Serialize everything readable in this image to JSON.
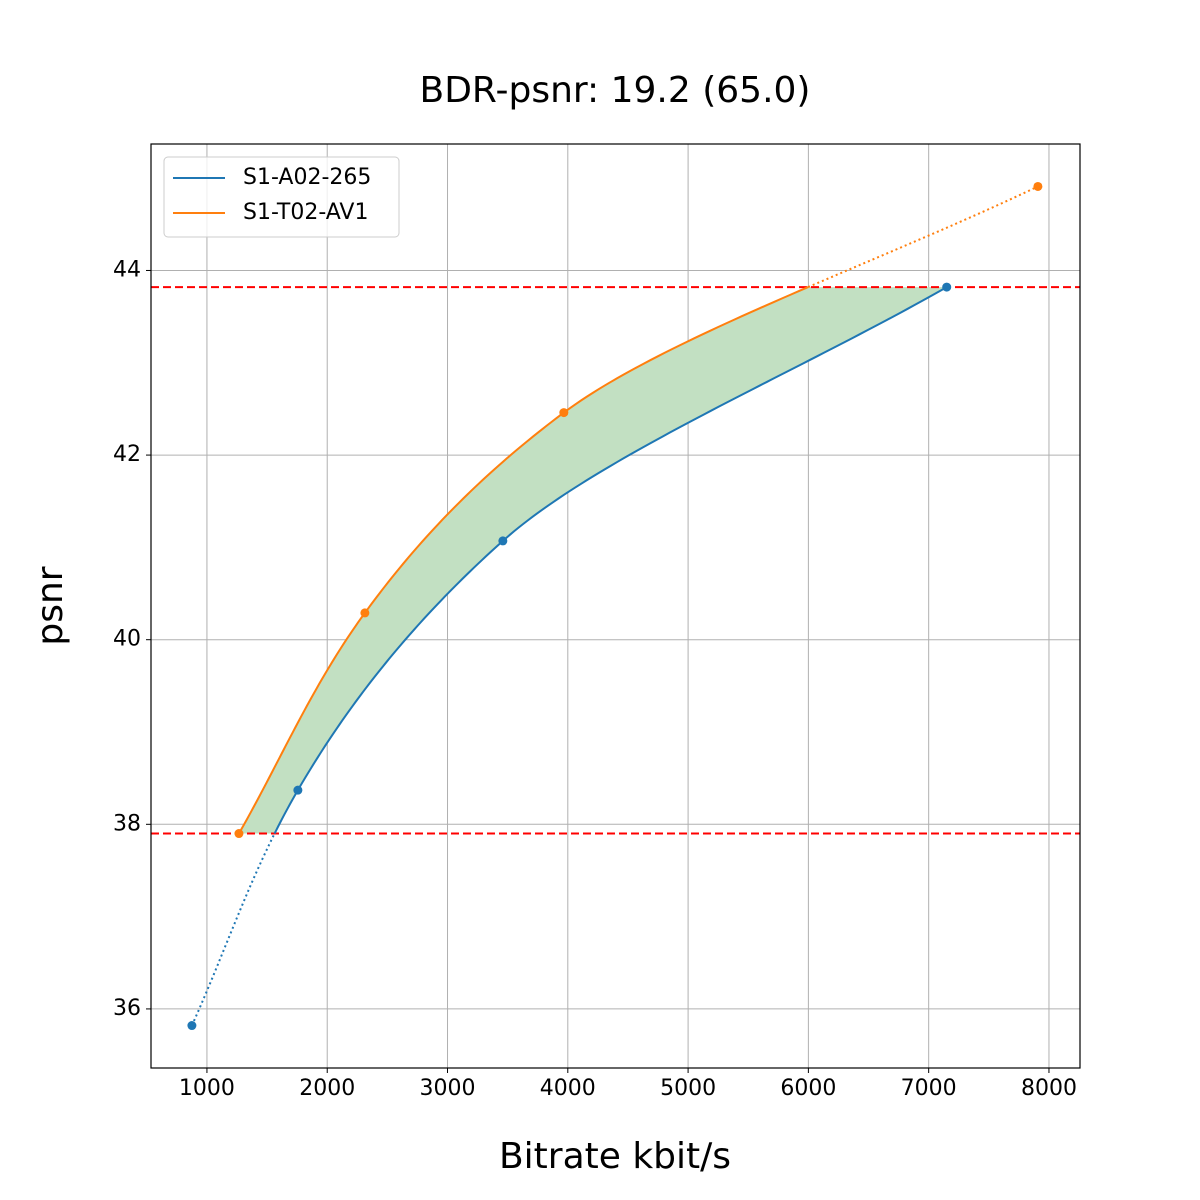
{
  "chart_data": {
    "type": "line",
    "title": "BDR-psnr: 19.2 (65.0)",
    "x_label": "Bitrate kbit/s",
    "y_label": "psnr",
    "xlim": [
      535,
      8258
    ],
    "ylim": [
      35.36,
      45.37
    ],
    "xticks": [
      1000,
      2000,
      3000,
      4000,
      5000,
      6000,
      7000,
      8000
    ],
    "yticks": [
      36,
      38,
      40,
      42,
      44
    ],
    "grid": true,
    "legend": "upper-left",
    "series": [
      {
        "name": "S1-A02-265",
        "color": "#1f77b4",
        "x": [
          875,
          1756,
          3460,
          7150
        ],
        "values": [
          35.82,
          38.37,
          41.07,
          43.82
        ]
      },
      {
        "name": "S1-T02-AV1",
        "color": "#ff7f0e",
        "x": [
          1266,
          2313,
          3967,
          7908
        ],
        "values": [
          37.9,
          40.29,
          42.46,
          44.91
        ]
      }
    ],
    "reference_lines": {
      "values": [
        37.9,
        43.82
      ],
      "color": "#ff0000"
    },
    "fill_color": "#c2e0c2"
  }
}
